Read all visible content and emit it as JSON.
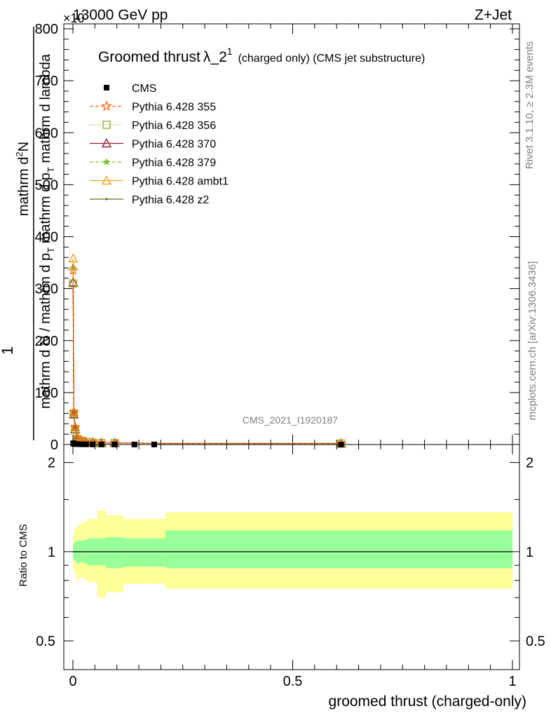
{
  "header": {
    "left": "13000 GeV pp",
    "right": "Z+Jet",
    "exponent": "×10"
  },
  "side_text": {
    "rivet": "Rivet 3.1.10, ≥ 2.3M events",
    "mcplots": "mcplots.cern.ch [arXiv:1306.3436]"
  },
  "watermark": "CMS_2021_I1920187",
  "legend_title": {
    "main": "Groomed thrust",
    "lambda": "λ_2",
    "sup": "1",
    "rest": "(charged only) (CMS jet substructure)"
  },
  "colors": {
    "cms": "#000000",
    "p355": "#ff6a13",
    "p356": "#8fb02a",
    "p370": "#9b1b30",
    "p379": "#7dbf24",
    "ambt1": "#f2a21b",
    "z2": "#6b6b14",
    "band_inner": "#99ff99",
    "band_outer": "#ffff99"
  },
  "chart_data": [
    {
      "type": "line",
      "title": "Groomed thrust λ_2^1 (charged only) (CMS jet substructure)",
      "xlabel": "groomed thrust (charged-only)",
      "ylabel_top": "mathrm d²N",
      "ylabel_bottom": "mathrm d N / mathrm d p_T mathrm d p_T mathrm d lambda",
      "ylabel_one": "1",
      "ylabel_parts": {
        "num": "mathrm d",
        "num_sup": "2",
        "num_end": "N",
        "den": "mathrm d N / mathrm d p",
        "den_sub": "T",
        "den_mid": "mathrm d p",
        "den_sub2": "T",
        "den_end": "mathrm d lambda"
      },
      "y_scale_note": "×10^3",
      "xlim": [
        0,
        1
      ],
      "ylim": [
        0,
        800
      ],
      "x_ticks": [
        0,
        0.5,
        1
      ],
      "x_tick_labels": [
        "0",
        "0.5",
        "1"
      ],
      "y_ticks": [
        0,
        100,
        200,
        300,
        400,
        500,
        600,
        700,
        800
      ],
      "y_tick_labels": [
        "0",
        "100",
        "200",
        "300",
        "400",
        "500",
        "600",
        "700",
        "800"
      ],
      "x": [
        0.0005,
        0.002,
        0.005,
        0.01,
        0.02,
        0.03,
        0.045,
        0.065,
        0.095,
        0.14,
        0.185,
        0.61
      ],
      "series": [
        {
          "name": "CMS",
          "key": "cms",
          "marker": "square",
          "values": [
            2.5,
            1.5,
            1,
            0.8,
            0.5,
            0.4,
            0.3,
            0.2,
            0.2,
            0.1,
            0.1,
            0.05
          ]
        },
        {
          "name": "Pythia 6.428 355",
          "key": "p355",
          "marker": "star",
          "dash": "5,3",
          "values": [
            335,
            62,
            33,
            12,
            7,
            5,
            4,
            3,
            3,
            3,
            2,
            2
          ]
        },
        {
          "name": "Pythia 6.428 356",
          "key": "p356",
          "marker": "square-open",
          "dash": "1,2",
          "values": [
            310,
            60,
            30,
            11,
            7,
            5,
            4,
            3,
            3,
            3,
            2,
            2
          ]
        },
        {
          "name": "Pythia 6.428 370",
          "key": "p370",
          "marker": "triangle-open",
          "dash": "",
          "values": [
            312,
            58,
            29,
            11,
            7,
            5,
            4,
            3,
            3,
            3,
            2,
            2
          ]
        },
        {
          "name": "Pythia 6.428 379",
          "key": "p379",
          "marker": "star-small",
          "dash": "5,3",
          "values": [
            340,
            60,
            31,
            12,
            7,
            5,
            4,
            3,
            3,
            3,
            2,
            2
          ]
        },
        {
          "name": "Pythia 6.428 ambt1",
          "key": "ambt1",
          "marker": "triangle-open",
          "dash": "",
          "values": [
            358,
            63,
            34,
            13,
            7,
            5,
            4,
            3,
            3,
            3,
            2,
            2
          ]
        },
        {
          "name": "Pythia 6.428 z2",
          "key": "z2",
          "marker": "dot",
          "dash": "",
          "values": [
            345,
            61,
            32,
            12,
            7,
            5,
            4,
            3,
            3,
            3,
            2,
            2
          ]
        }
      ]
    },
    {
      "type": "area",
      "ylabel": "Ratio to CMS",
      "xlim": [
        0,
        1
      ],
      "ylim": [
        0.4,
        2.3
      ],
      "y_scale": "log",
      "y_ticks": [
        0.5,
        1,
        2
      ],
      "y_tick_labels": [
        "0.5",
        "1",
        "2"
      ],
      "bin_edges": [
        0,
        0.003,
        0.008,
        0.015,
        0.025,
        0.035,
        0.055,
        0.075,
        0.115,
        0.165,
        0.21,
        1.0
      ],
      "inner_band": {
        "lo": [
          0.94,
          0.93,
          0.91,
          0.92,
          0.91,
          0.9,
          0.9,
          0.88,
          0.89,
          0.89,
          0.88
        ],
        "hi": [
          1.06,
          1.08,
          1.09,
          1.09,
          1.1,
          1.11,
          1.11,
          1.12,
          1.11,
          1.11,
          1.18
        ]
      },
      "outer_band": {
        "lo": [
          0.88,
          0.84,
          0.8,
          0.82,
          0.8,
          0.79,
          0.7,
          0.73,
          0.78,
          0.78,
          0.75
        ],
        "hi": [
          1.13,
          1.2,
          1.22,
          1.25,
          1.27,
          1.29,
          1.38,
          1.33,
          1.29,
          1.29,
          1.36
        ]
      },
      "reference": 1
    }
  ],
  "legend": [
    {
      "label": "CMS",
      "key": "cms"
    },
    {
      "label": "Pythia 6.428 355",
      "key": "p355"
    },
    {
      "label": "Pythia 6.428 356",
      "key": "p356"
    },
    {
      "label": "Pythia 6.428 370",
      "key": "p370"
    },
    {
      "label": "Pythia 6.428 379",
      "key": "p379"
    },
    {
      "label": "Pythia 6.428 ambt1",
      "key": "ambt1"
    },
    {
      "label": "Pythia 6.428 z2",
      "key": "z2"
    }
  ]
}
